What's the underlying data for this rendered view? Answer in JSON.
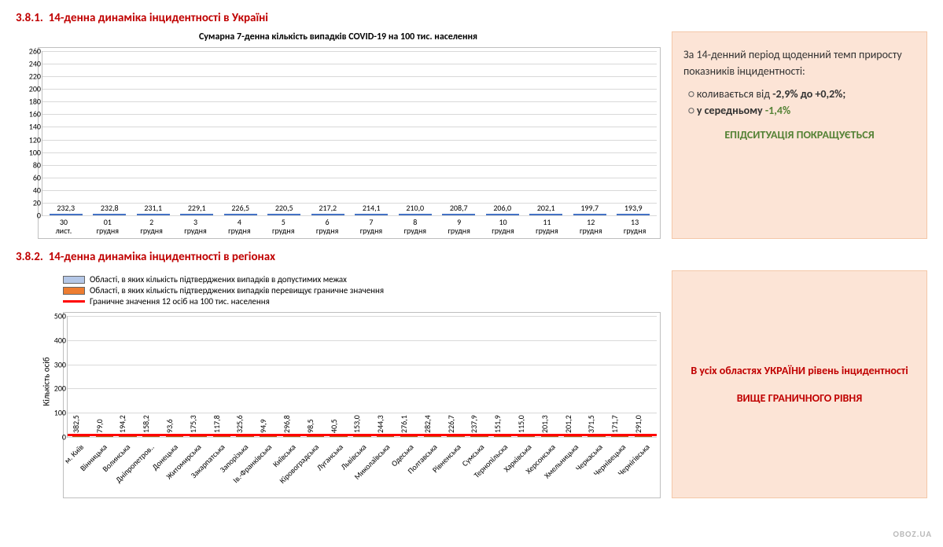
{
  "section1": {
    "number": "3.8.1.",
    "title": "14-денна динаміка інцидентності в Україні",
    "chart_title": "Сумарна 7-денна кількість випадків COVID-19 на 100 тис. населення",
    "chart": {
      "type": "bar",
      "categories": [
        "30 лист.",
        "01 грудня",
        "2 грудня",
        "3 грудня",
        "4 грудня",
        "5 грудня",
        "6 грудня",
        "7 грудня",
        "8 грудня",
        "9 грудня",
        "10 грудня",
        "11 грудня",
        "12 грудня",
        "13 грудня"
      ],
      "values": [
        232.3,
        232.8,
        231.1,
        229.1,
        226.5,
        220.5,
        217.2,
        214.1,
        210.0,
        208.7,
        206.0,
        202.1,
        199.7,
        193.9
      ],
      "value_labels": [
        "232,3",
        "232,8",
        "231,1",
        "229,1",
        "226,5",
        "220,5",
        "217,2",
        "214,1",
        "210,0",
        "208,7",
        "206,0",
        "202,1",
        "199,7",
        "193,9"
      ],
      "bar_color": "#b4c7e7",
      "bar_border": "#4472c4",
      "ylim": [
        0,
        260
      ],
      "ytick_step": 20,
      "grid_color": "#d9d9d9",
      "background": "#ffffff"
    },
    "sidebox": {
      "intro": "За 14-денний період щоденний темп приросту показників інцидентності:",
      "bullets": [
        {
          "plain": "коливається від ",
          "bold": "-2,9% до +0,2%;"
        },
        {
          "plain": "у середньому ",
          "green": "-1,4%"
        }
      ],
      "status": "ЕПІДСИТУАЦІЯ ПОКРАЩУЄТЬСЯ"
    }
  },
  "section2": {
    "number": "3.8.2.",
    "title": "14-денна динаміка інцидентності в регіонах",
    "legend": {
      "blue": "Області, в яких кількість підтверджених випадків в допустимих межах",
      "orange": "Області, в яких кількість підтверджених випадків перевищує граничне значення",
      "red": "Граничне значення 12 осіб на 100 тис. населення"
    },
    "ylabel": "Кількість осіб",
    "chart": {
      "type": "bar",
      "categories": [
        "м. Київ",
        "Вінницька",
        "Волинська",
        "Дніпропетров..",
        "Донецька",
        "Житомирська",
        "Закарпатська",
        "Запорізька",
        "Ів.-Франківська",
        "Київська",
        "Кіровоградська",
        "Луганська",
        "Львівська",
        "Миколаївська",
        "Одеська",
        "Полтавська",
        "Рівненська",
        "Сумська",
        "Тернопільска",
        "Харківська",
        "Херсонська",
        "Хмельницька",
        "Черкаська",
        "Чернівецька",
        "Чернігівська"
      ],
      "values": [
        382.5,
        79.0,
        194.2,
        158.2,
        93.6,
        175.3,
        117.8,
        325.6,
        94.9,
        296.8,
        98.5,
        40.5,
        153.0,
        244.3,
        276.1,
        282.4,
        226.7,
        237.9,
        151.9,
        115.0,
        201.3,
        201.2,
        371.5,
        171.7,
        291.0
      ],
      "value_labels": [
        "382,5",
        "79,0",
        "194,2",
        "158,2",
        "93,6",
        "175,3",
        "117,8",
        "325,6",
        "94,9",
        "296,8",
        "98,5",
        "40,5",
        "153,0",
        "244,3",
        "276,1",
        "282,4",
        "226,7",
        "237,9",
        "151,9",
        "115,0",
        "201,3",
        "201,2",
        "371,5",
        "171,7",
        "291,0"
      ],
      "bar_color": "#ed7d31",
      "bar_border": "#c15811",
      "blue_color": "#b4c7e7",
      "ylim": [
        0,
        500
      ],
      "ytick_step": 100,
      "threshold": 12,
      "threshold_color": "#ff0000"
    },
    "sidebox": {
      "line1": "В усіх областях УКРАЇНИ рівень інцидентності",
      "line2": "ВИЩЕ ГРАНИЧНОГО РІВНЯ"
    }
  },
  "watermark": "OBOZ.UA"
}
